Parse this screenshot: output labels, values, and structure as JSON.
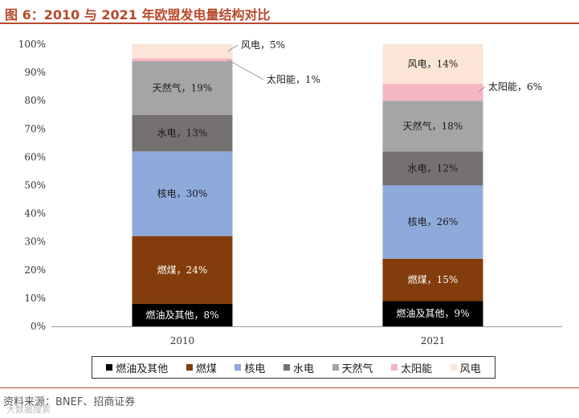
{
  "header": {
    "title": "图 6：2010 与 2021 年欧盟发电量结构对比"
  },
  "footer": {
    "source": "资料来源：BNEF、招商证券",
    "watermark": "大数据搜索"
  },
  "chart_data": {
    "type": "bar",
    "stacked": true,
    "percent": true,
    "categories": [
      "2010",
      "2021"
    ],
    "ylim": [
      0,
      100
    ],
    "y_ticks": [
      "0%",
      "10%",
      "20%",
      "30%",
      "40%",
      "50%",
      "60%",
      "70%",
      "80%",
      "90%",
      "100%"
    ],
    "grid": false,
    "legend_position": "bottom",
    "series": [
      {
        "name": "燃油及其他",
        "color": "#000000",
        "values": [
          8,
          9
        ],
        "labels": [
          "燃油及其他，8%",
          "燃油及其他，9%"
        ],
        "label_color": "#ffffff"
      },
      {
        "name": "燃煤",
        "color": "#833c0b",
        "values": [
          24,
          15
        ],
        "labels": [
          "燃煤，24%",
          "燃煤，15%"
        ],
        "label_color": "#ffffff"
      },
      {
        "name": "核电",
        "color": "#8eaadb",
        "values": [
          30,
          26
        ],
        "labels": [
          "核电，30%",
          "核电，26%"
        ],
        "label_color": "#1a1a1a"
      },
      {
        "name": "水电",
        "color": "#767171",
        "values": [
          13,
          12
        ],
        "labels": [
          "水电，13%",
          "水电，12%"
        ],
        "label_color": "#1a1a1a"
      },
      {
        "name": "天然气",
        "color": "#a5a5a5",
        "values": [
          19,
          18
        ],
        "labels": [
          "天然气，19%",
          "天然气，18%"
        ],
        "label_color": "#1a1a1a"
      },
      {
        "name": "太阳能",
        "color": "#f4b6c2",
        "values": [
          1,
          6
        ],
        "labels": [
          "太阳能，1%",
          "太阳能，6%"
        ],
        "label_color": "#1a1a1a"
      },
      {
        "name": "风电",
        "color": "#fbe5d6",
        "values": [
          5,
          14
        ],
        "labels": [
          "风电，5%",
          "风电，14%"
        ],
        "label_color": "#1a1a1a"
      }
    ]
  }
}
